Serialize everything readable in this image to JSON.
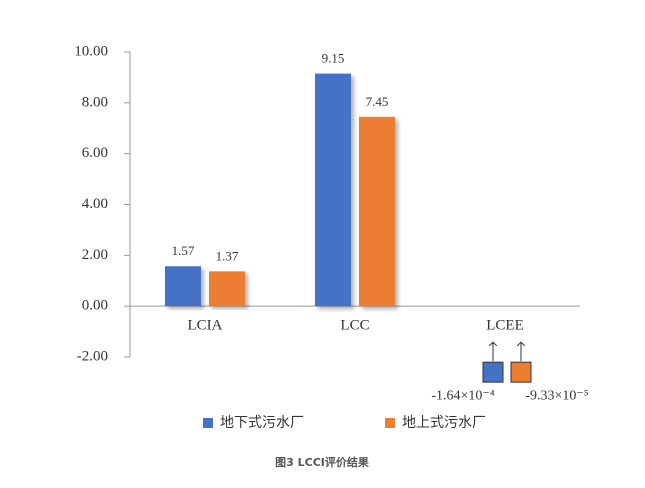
{
  "chart_data": {
    "type": "bar",
    "caption": "图3  LCCI评价结果",
    "categories": [
      "LCIA",
      "LCC",
      "LCEE"
    ],
    "series": [
      {
        "name": "地下式污水厂",
        "color": "#4472c4",
        "values": [
          1.57,
          9.15,
          -0.000164
        ],
        "value_labels": [
          "1.57",
          "9.15",
          "-1.64×10⁻⁴"
        ]
      },
      {
        "name": "地上式污水厂",
        "color": "#ed7d31",
        "values": [
          1.37,
          7.45,
          -9.33e-05
        ],
        "value_labels": [
          "1.37",
          "7.45",
          "-9.33×10⁻⁵"
        ]
      }
    ],
    "ylim": [
      -2,
      10
    ],
    "yticks": [
      {
        "value": -2,
        "label": "-2.00"
      },
      {
        "value": 0,
        "label": "0.00"
      },
      {
        "value": 2,
        "label": "2.00"
      },
      {
        "value": 4,
        "label": "4.00"
      },
      {
        "value": 6,
        "label": "6.00"
      },
      {
        "value": 8,
        "label": "8.00"
      },
      {
        "value": 10,
        "label": "10.00"
      }
    ],
    "legend": "bottom"
  }
}
